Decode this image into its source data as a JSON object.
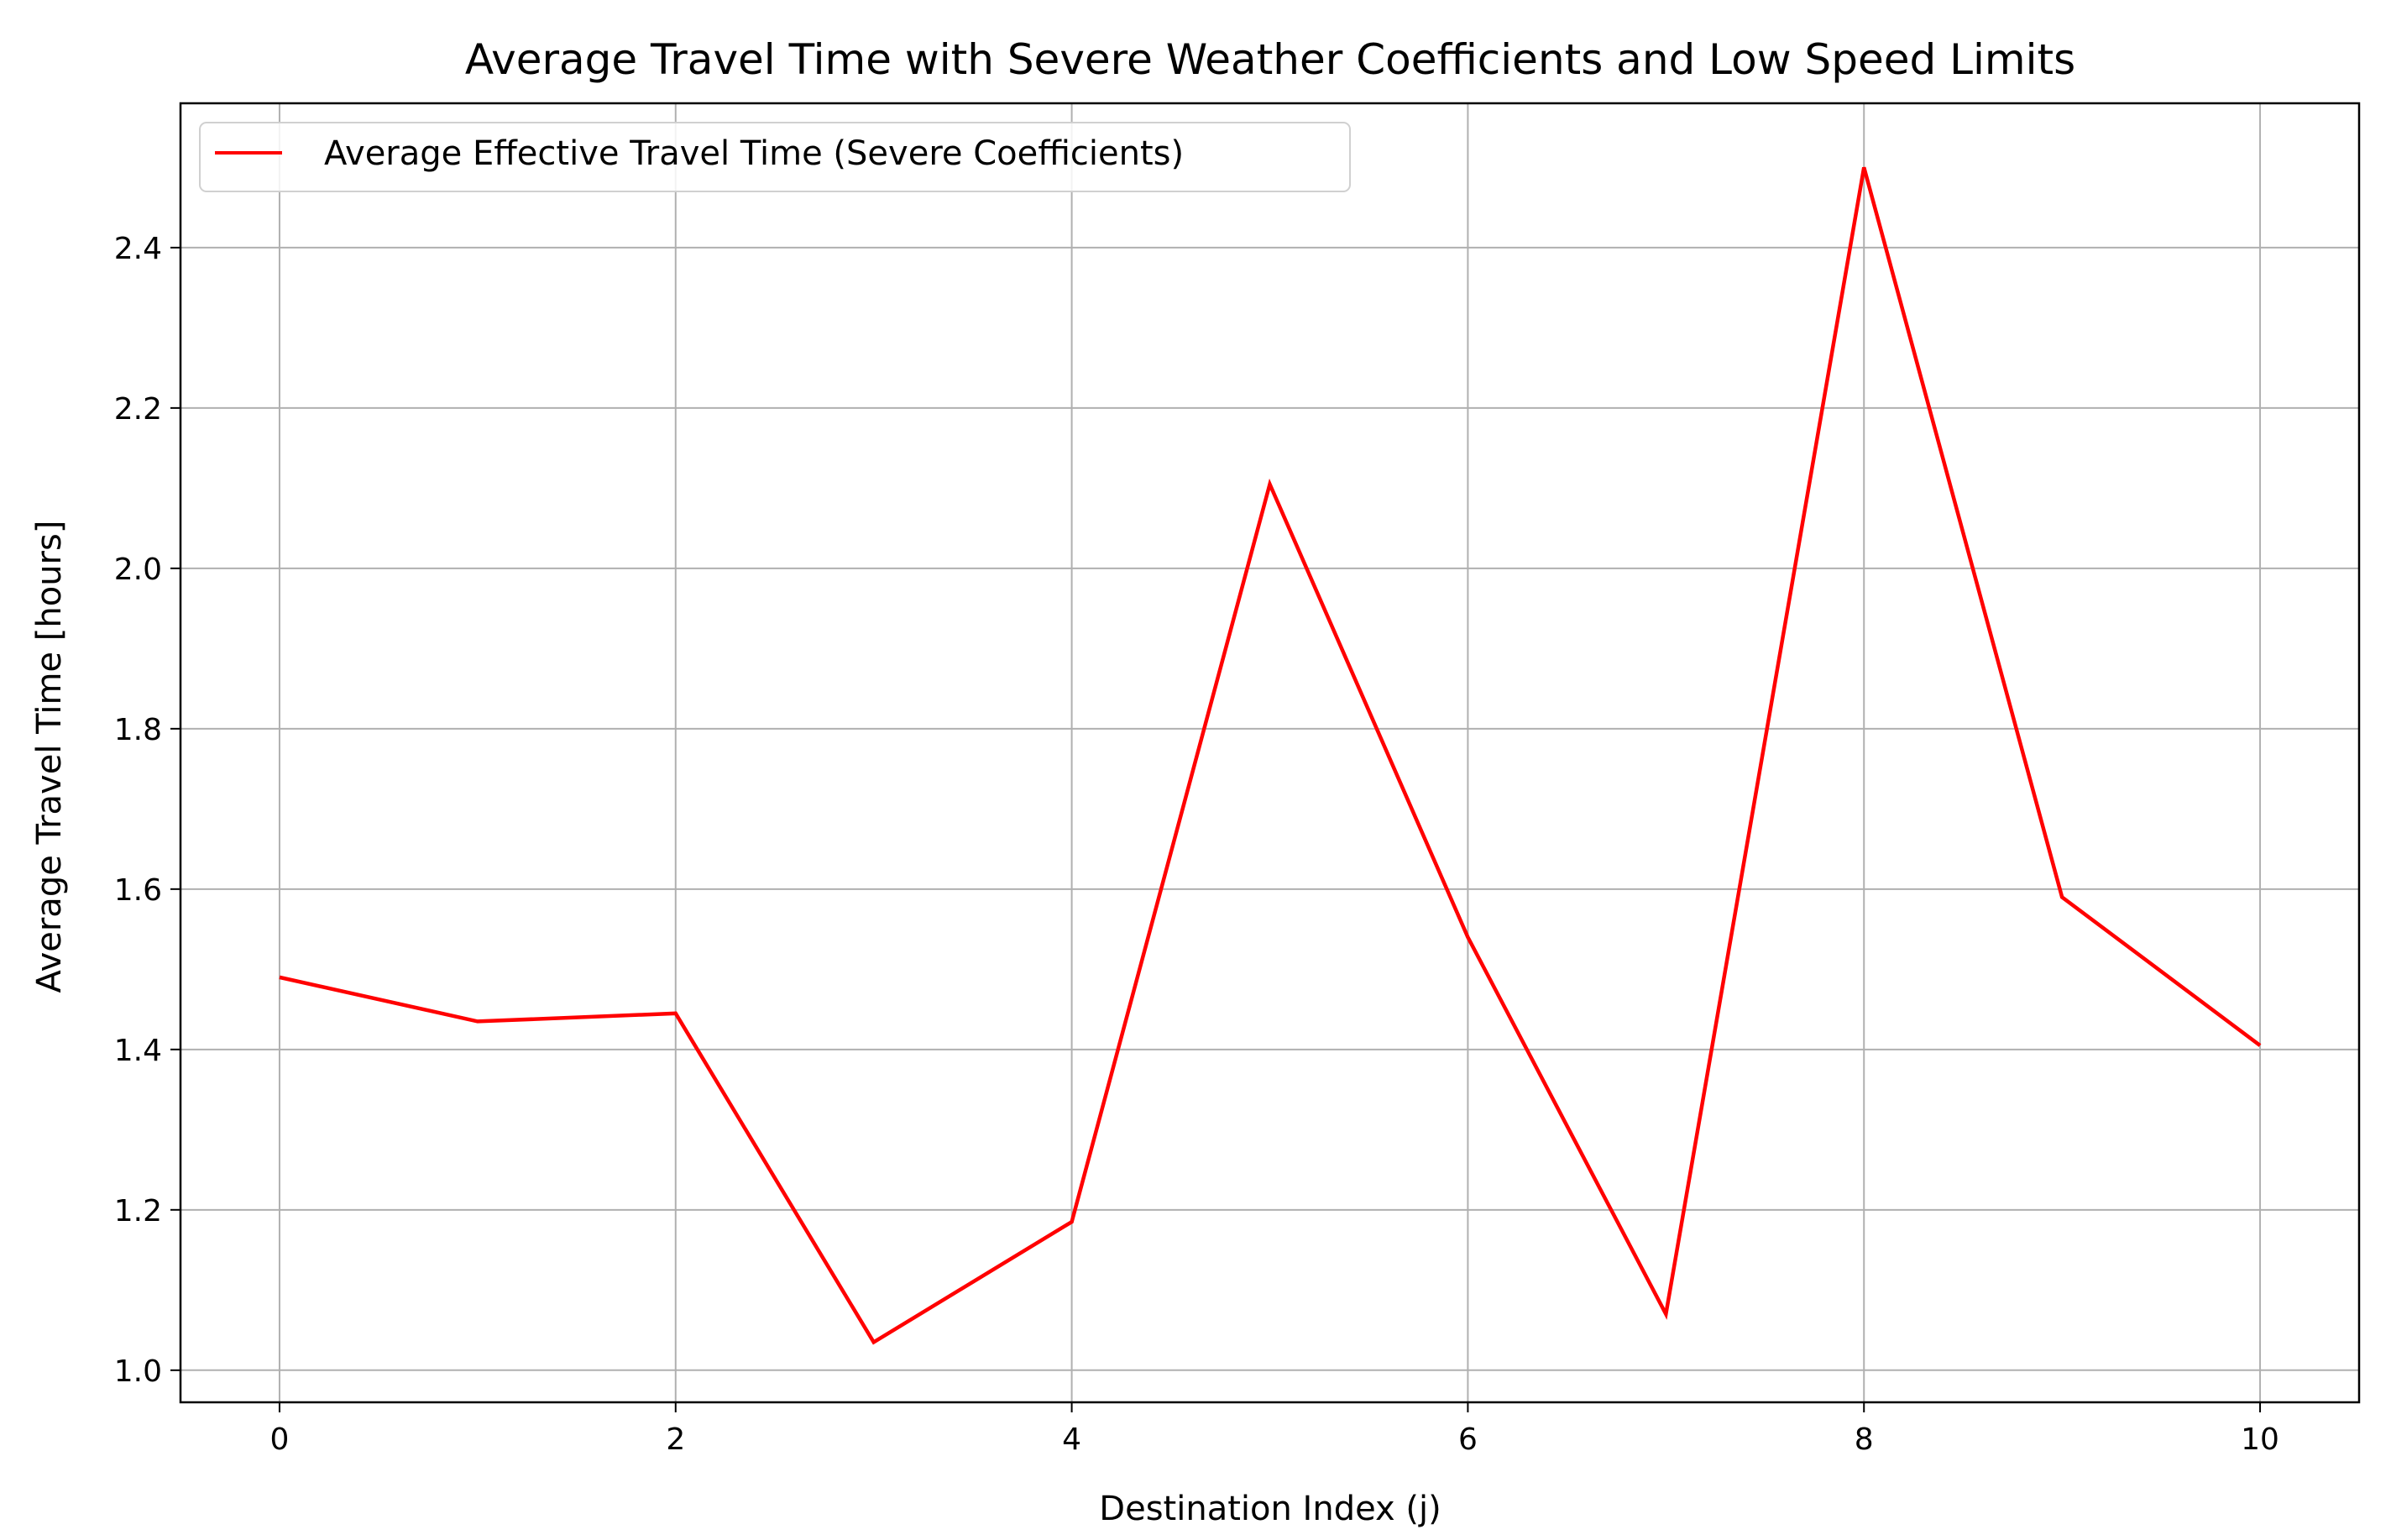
{
  "chart_data": {
    "type": "line",
    "title": "Average Travel Time with Severe Weather Coefficients and Low Speed Limits",
    "xlabel": "Destination Index (j)",
    "ylabel": "Average Travel Time [hours]",
    "xlim": [
      -0.5,
      10.5
    ],
    "ylim": [
      0.96,
      2.58
    ],
    "xticks": [
      0,
      2,
      4,
      6,
      8,
      10
    ],
    "yticks": [
      1.0,
      1.2,
      1.4,
      1.6,
      1.8,
      2.0,
      2.2,
      2.4
    ],
    "xtick_labels": [
      "0",
      "2",
      "4",
      "6",
      "8",
      "10"
    ],
    "ytick_labels": [
      "1.0",
      "1.2",
      "1.4",
      "1.6",
      "1.8",
      "2.0",
      "2.2",
      "2.4"
    ],
    "grid": true,
    "legend_position": "top-left",
    "series": [
      {
        "name": "Average Effective Travel Time (Severe Coefficients)",
        "color": "#ff0000",
        "x": [
          0,
          1,
          2,
          3,
          4,
          5,
          6,
          7,
          8,
          9,
          10
        ],
        "y": [
          1.49,
          1.435,
          1.445,
          1.035,
          1.185,
          2.105,
          1.54,
          1.07,
          2.5,
          1.59,
          1.405
        ]
      }
    ]
  }
}
